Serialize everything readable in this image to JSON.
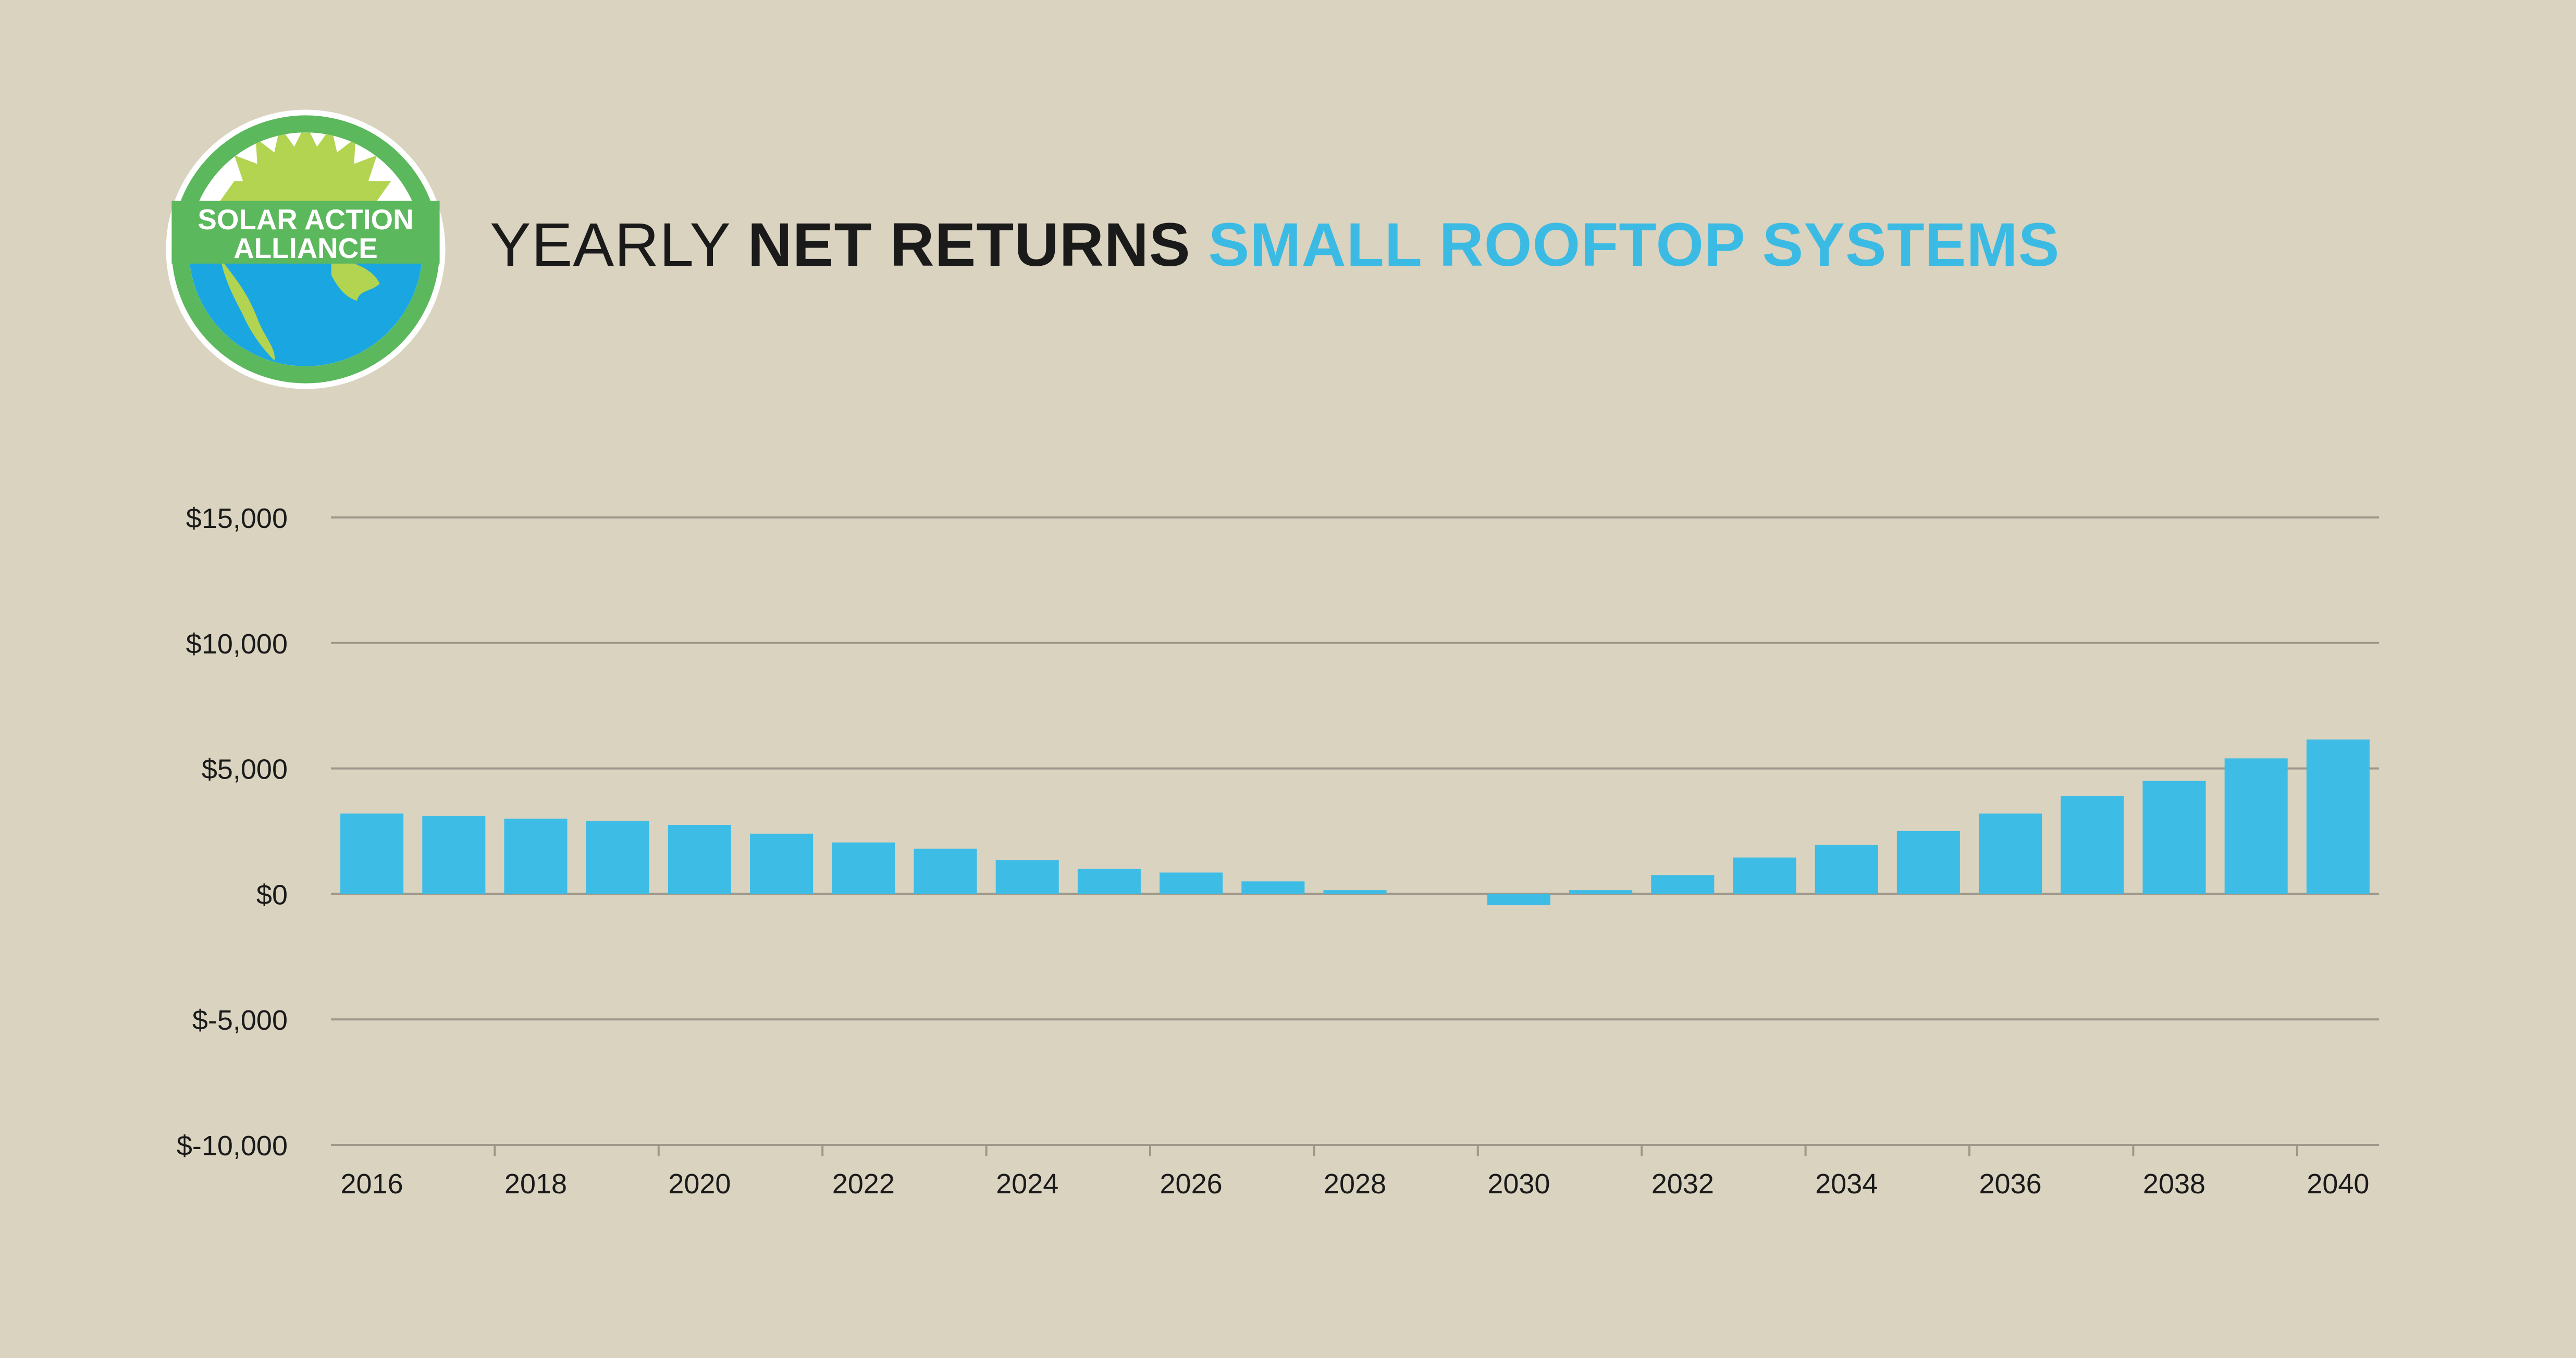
{
  "logo": {
    "line1": "SOLAR ACTION",
    "line2": "ALLIANCE",
    "ring_color": "#5cb85c",
    "sun_color": "#b2d450",
    "globe_color": "#1aa6e0"
  },
  "title": {
    "part1": "YEARLY",
    "part2": "NET RETURNS",
    "part3": "SMALL ROOFTOP SYSTEMS",
    "accent_color": "#3bbbe3"
  },
  "chart_data": {
    "type": "bar",
    "title": "YEARLY NET RETURNS SMALL ROOFTOP SYSTEMS",
    "xlabel": "",
    "ylabel": "",
    "ylim": [
      -10000,
      15000
    ],
    "y_ticks": [
      15000,
      10000,
      5000,
      0,
      -5000,
      -10000
    ],
    "y_tick_labels": [
      "$15,000",
      "$10,000",
      "$5,000",
      "$0",
      "$-5,000",
      "$-10,000"
    ],
    "categories": [
      "2016",
      "2017",
      "2018",
      "2019",
      "2020",
      "2021",
      "2022",
      "2023",
      "2024",
      "2025",
      "2026",
      "2027",
      "2028",
      "2029",
      "2030",
      "2031",
      "2032",
      "2033",
      "2034",
      "2035",
      "2036",
      "2037",
      "2038",
      "2039",
      "2040"
    ],
    "x_tick_labels": [
      "2016",
      "2018",
      "2020",
      "2022",
      "2024",
      "2026",
      "2028",
      "2030",
      "2032",
      "2034",
      "2036",
      "2038",
      "2040"
    ],
    "values": [
      3200,
      3100,
      3000,
      2900,
      2750,
      2400,
      2050,
      1800,
      1350,
      1000,
      850,
      500,
      150,
      0,
      -450,
      150,
      750,
      1450,
      1950,
      2500,
      3200,
      3900,
      4500,
      5400,
      6150
    ],
    "bar_color": "#3dbce6",
    "grid": true,
    "legend": "none"
  }
}
